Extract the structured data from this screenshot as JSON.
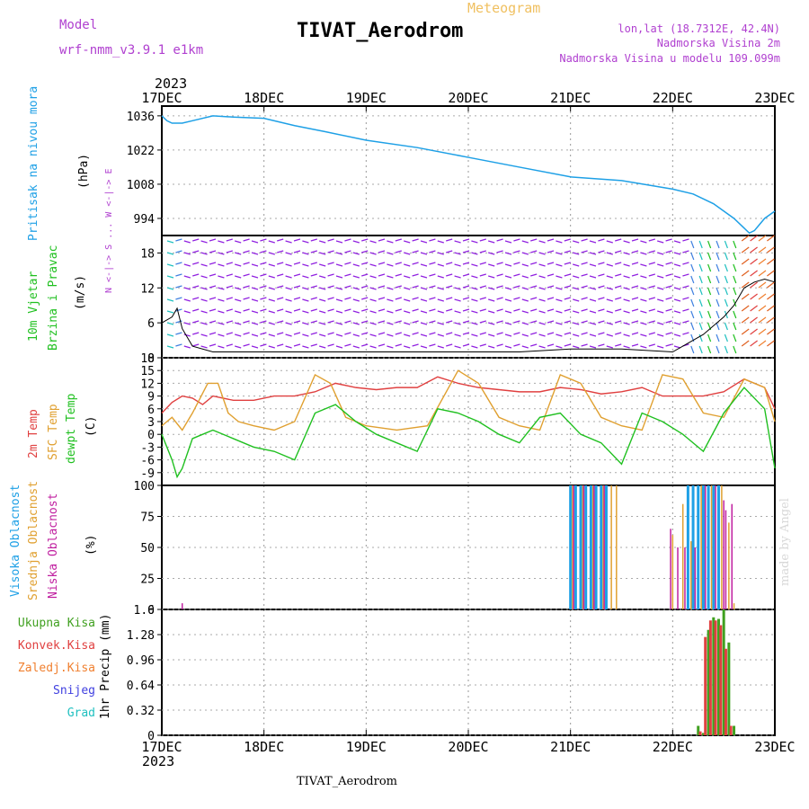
{
  "header": {
    "title": "TIVAT_Aerodrom",
    "meteogram_label": "Meteogram",
    "model_label": "Model",
    "model_name": "wrf-nmm_v3.9.1 e1km",
    "lonlat": "lon,lat (18.7312E, 42.4N)",
    "altitude": "Nadmorska Visina 2m",
    "model_altitude": "Nadmorska Visina u modelu 109.099m",
    "year_top": "2023",
    "year_bottom": "2023",
    "bottom_title": "TIVAT_Aerodrom",
    "made_by": "made by Angel"
  },
  "colors": {
    "pressure": "#1ea0e6",
    "temp2m": "#e04040",
    "sfc_temp": "#e0a030",
    "dewpt": "#20c020",
    "wind_label": "#20c020",
    "high_cloud": "#1ea0e6",
    "mid_cloud": "#e0a030",
    "low_cloud": "#c020a0",
    "total_rain": "#40a020",
    "conv_rain": "#e04040",
    "freezing_rain": "#f08030",
    "snow": "#4040e0",
    "hail": "#20c0c0",
    "wind_barb": "#9020e0"
  },
  "chart_data": [
    {
      "type": "line",
      "name": "pressure",
      "ylabel_1": "Pritisak na nivou mora",
      "ylabel_2": "(hPa)",
      "x_ticks": [
        "17DEC",
        "18DEC",
        "19DEC",
        "20DEC",
        "21DEC",
        "22DEC",
        "23DEC"
      ],
      "ylim": [
        987,
        1040
      ],
      "yticks": [
        994,
        1008,
        1022,
        1036
      ],
      "x": [
        0,
        0.05,
        0.1,
        0.2,
        0.3,
        0.5,
        0.7,
        1.0,
        1.3,
        1.6,
        2.0,
        2.5,
        3.0,
        3.5,
        4.0,
        4.5,
        5.0,
        5.2,
        5.4,
        5.6,
        5.7,
        5.75,
        5.8,
        5.9,
        6.0
      ],
      "values": [
        1036,
        1034,
        1033,
        1033,
        1034,
        1036,
        1035.5,
        1035,
        1032,
        1029.5,
        1026,
        1023,
        1019,
        1015,
        1011,
        1009.5,
        1006,
        1004,
        1000,
        994,
        990,
        988,
        989,
        994,
        997
      ]
    },
    {
      "type": "line",
      "name": "wind",
      "ylabel_1": "10m Vjetar",
      "ylabel_2": "Brzina i Pravac",
      "ylabel_3": "(m/s)",
      "compass": "N <-|-> S ... W <-|-> E",
      "ylim": [
        0,
        21
      ],
      "yticks": [
        0,
        6,
        12,
        18
      ],
      "x": [
        0,
        0.1,
        0.15,
        0.2,
        0.3,
        0.5,
        1.0,
        2.0,
        3.0,
        3.5,
        4.0,
        4.5,
        5.0,
        5.2,
        5.3,
        5.5,
        5.6,
        5.7,
        5.8,
        5.9,
        6.0
      ],
      "values": [
        6,
        7,
        8.5,
        5,
        2,
        1,
        1,
        1,
        1,
        1,
        1.5,
        1.5,
        1,
        3,
        4,
        7,
        9,
        12,
        13,
        13.5,
        13
      ]
    },
    {
      "type": "line",
      "name": "temperature",
      "ylabel_1": "2m Temp",
      "ylabel_2": "SFC Temp",
      "ylabel_3": "dewpt Temp",
      "ylabel_4": "(C)",
      "ylim": [
        -12,
        18
      ],
      "yticks": [
        -9,
        -6,
        -3,
        0,
        3,
        6,
        9,
        12,
        15,
        18
      ],
      "series": [
        {
          "name": "2m Temp",
          "x": [
            0,
            0.1,
            0.2,
            0.3,
            0.4,
            0.5,
            0.7,
            0.9,
            1.1,
            1.3,
            1.5,
            1.7,
            1.9,
            2.1,
            2.3,
            2.5,
            2.7,
            2.9,
            3.1,
            3.3,
            3.5,
            3.7,
            3.9,
            4.1,
            4.3,
            4.5,
            4.7,
            4.9,
            5.1,
            5.3,
            5.5,
            5.7,
            5.9,
            6.0
          ],
          "values": [
            5,
            7.5,
            9,
            8.5,
            7,
            9,
            8,
            8,
            9,
            9,
            10,
            12,
            11,
            10.5,
            11,
            11,
            13.5,
            12,
            11,
            10.5,
            10,
            10,
            11,
            10.5,
            9.5,
            10,
            11,
            9,
            9,
            9,
            10,
            13,
            11,
            6
          ]
        },
        {
          "name": "SFC Temp",
          "x": [
            0,
            0.1,
            0.2,
            0.3,
            0.45,
            0.55,
            0.65,
            0.75,
            0.9,
            1.1,
            1.3,
            1.5,
            1.65,
            1.8,
            2.0,
            2.3,
            2.6,
            2.9,
            3.1,
            3.3,
            3.5,
            3.7,
            3.9,
            4.1,
            4.3,
            4.5,
            4.7,
            4.9,
            5.1,
            5.3,
            5.5,
            5.7,
            5.9,
            6.0
          ],
          "values": [
            2,
            4,
            1,
            5,
            12,
            12,
            5,
            3,
            2,
            1,
            3,
            14,
            12,
            4,
            2,
            1,
            2,
            15,
            12,
            4,
            2,
            1,
            14,
            12,
            4,
            2,
            1,
            14,
            13,
            5,
            4,
            13,
            11,
            3
          ]
        },
        {
          "name": "dewpt Temp",
          "x": [
            0,
            0.1,
            0.15,
            0.2,
            0.3,
            0.4,
            0.5,
            0.7,
            0.9,
            1.1,
            1.3,
            1.5,
            1.7,
            1.9,
            2.1,
            2.3,
            2.5,
            2.7,
            2.9,
            3.1,
            3.3,
            3.5,
            3.7,
            3.9,
            4.1,
            4.3,
            4.5,
            4.7,
            4.9,
            5.1,
            5.3,
            5.5,
            5.7,
            5.9,
            6.0
          ],
          "values": [
            0,
            -6,
            -10,
            -8,
            -1,
            0,
            1,
            -1,
            -3,
            -4,
            -6,
            5,
            7,
            3,
            0,
            -2,
            -4,
            6,
            5,
            3,
            0,
            -2,
            4,
            5,
            0,
            -2,
            -7,
            5,
            3,
            0,
            -4,
            5,
            11,
            6,
            -8
          ]
        }
      ]
    },
    {
      "type": "bar",
      "name": "clouds",
      "ylabel_1": "Visoka Oblacnost",
      "ylabel_2": "Srednja Oblacnost",
      "ylabel_3": "Niska Oblacnost",
      "ylabel_4": "(%)",
      "ylim": [
        0,
        100
      ],
      "yticks": [
        0,
        25,
        50,
        75,
        100
      ],
      "series": [
        {
          "name": "Visoka Oblacnost",
          "x": [
            4.0,
            4.05,
            4.1,
            4.15,
            4.2,
            4.25,
            4.3,
            4.35,
            5.15,
            5.2,
            5.25,
            5.3,
            5.35,
            5.4,
            5.45
          ],
          "values": [
            100,
            100,
            100,
            100,
            100,
            100,
            100,
            100,
            100,
            100,
            100,
            100,
            100,
            100,
            100
          ]
        },
        {
          "name": "Srednja Oblacnost",
          "x": [
            4.02,
            4.12,
            4.22,
            4.32,
            4.4,
            4.45,
            5.0,
            5.1,
            5.18,
            5.28,
            5.38,
            5.48,
            5.55,
            5.6
          ],
          "values": [
            100,
            100,
            100,
            100,
            100,
            100,
            60,
            85,
            55,
            100,
            100,
            100,
            70,
            5
          ]
        },
        {
          "name": "Niska Oblacnost",
          "x": [
            0.2,
            4.03,
            4.13,
            4.23,
            4.33,
            4.98,
            5.05,
            5.12,
            5.22,
            5.32,
            5.42,
            5.5,
            5.52,
            5.58
          ],
          "values": [
            5,
            100,
            100,
            100,
            100,
            65,
            50,
            50,
            50,
            100,
            100,
            88,
            80,
            85
          ]
        }
      ]
    },
    {
      "type": "bar",
      "name": "precipitation",
      "ylabel": "1hr Precip (mm)",
      "ylim": [
        0,
        1.6
      ],
      "yticks": [
        0,
        0.32,
        0.64,
        0.96,
        1.28,
        1.6
      ],
      "legend": [
        "Ukupna Kisa",
        "Konvek.Kisa",
        "Zaledj.Kisa",
        "Snijeg",
        "Grad"
      ],
      "series": [
        {
          "name": "Ukupna Kisa",
          "x": [
            5.25,
            5.3,
            5.35,
            5.4,
            5.45,
            5.5,
            5.55,
            5.6
          ],
          "values": [
            0.12,
            0.03,
            1.34,
            1.5,
            1.48,
            1.6,
            1.18,
            0.12
          ]
        },
        {
          "name": "Konvek.Kisa",
          "x": [
            5.27,
            5.32,
            5.37,
            5.42,
            5.47,
            5.52,
            5.57
          ],
          "values": [
            0.05,
            1.25,
            1.46,
            1.46,
            1.4,
            1.1,
            0.12
          ]
        }
      ]
    }
  ]
}
